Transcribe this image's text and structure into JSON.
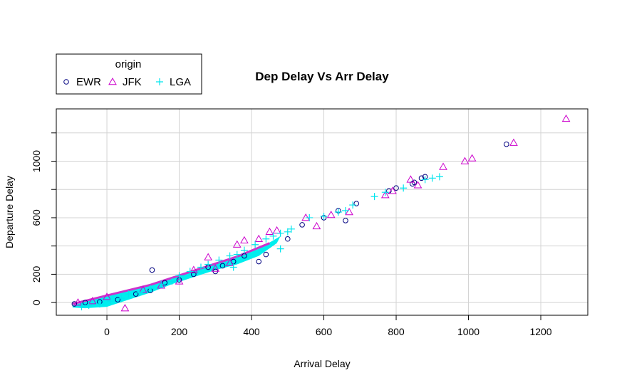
{
  "chart_data": {
    "type": "scatter",
    "title": "Dep Delay Vs Arr Delay",
    "xlabel": "Arrival Delay",
    "ylabel": "Departure Delay",
    "xlim": [
      -140,
      1330
    ],
    "ylim": [
      -90,
      1370
    ],
    "x_ticks": [
      0,
      200,
      400,
      600,
      800,
      1000,
      1200
    ],
    "y_ticks": [
      0,
      200,
      600,
      1000
    ],
    "x_tick_labels": [
      "0",
      "200",
      "400",
      "600",
      "800",
      "1000",
      "1200"
    ],
    "y_tick_labels": [
      "0",
      "200",
      "600",
      "1000"
    ],
    "grid": true,
    "legend": {
      "title": "origin",
      "position": "top-left, outside plot",
      "entries": [
        {
          "label": "EWR",
          "symbol": "circle",
          "color": "#000080"
        },
        {
          "label": "JFK",
          "symbol": "triangle",
          "color": "#CC00CC"
        },
        {
          "label": "LGA",
          "symbol": "plus",
          "color": "#00E5EE"
        }
      ]
    },
    "series": [
      {
        "name": "EWR",
        "symbol": "circle",
        "color": "#000080",
        "points": [
          [
            -90,
            -10
          ],
          [
            -60,
            0
          ],
          [
            -20,
            5
          ],
          [
            30,
            20
          ],
          [
            80,
            60
          ],
          [
            120,
            85
          ],
          [
            125,
            230
          ],
          [
            160,
            140
          ],
          [
            200,
            160
          ],
          [
            240,
            200
          ],
          [
            280,
            250
          ],
          [
            300,
            220
          ],
          [
            320,
            260
          ],
          [
            350,
            290
          ],
          [
            380,
            330
          ],
          [
            420,
            290
          ],
          [
            440,
            340
          ],
          [
            500,
            450
          ],
          [
            540,
            550
          ],
          [
            600,
            600
          ],
          [
            640,
            650
          ],
          [
            660,
            580
          ],
          [
            690,
            700
          ],
          [
            780,
            790
          ],
          [
            800,
            810
          ],
          [
            845,
            840
          ],
          [
            850,
            850
          ],
          [
            870,
            880
          ],
          [
            880,
            890
          ],
          [
            1105,
            1120
          ]
        ]
      },
      {
        "name": "JFK",
        "symbol": "triangle",
        "color": "#CC00CC",
        "points": [
          [
            -80,
            0
          ],
          [
            -40,
            10
          ],
          [
            0,
            40
          ],
          [
            50,
            -40
          ],
          [
            100,
            90
          ],
          [
            150,
            120
          ],
          [
            200,
            150
          ],
          [
            240,
            230
          ],
          [
            280,
            320
          ],
          [
            300,
            240
          ],
          [
            340,
            280
          ],
          [
            360,
            410
          ],
          [
            380,
            440
          ],
          [
            420,
            450
          ],
          [
            450,
            500
          ],
          [
            470,
            510
          ],
          [
            550,
            600
          ],
          [
            580,
            540
          ],
          [
            620,
            620
          ],
          [
            670,
            640
          ],
          [
            770,
            760
          ],
          [
            790,
            790
          ],
          [
            840,
            870
          ],
          [
            860,
            830
          ],
          [
            930,
            960
          ],
          [
            990,
            1000
          ],
          [
            1010,
            1020
          ],
          [
            1125,
            1130
          ],
          [
            1270,
            1300
          ]
        ]
      },
      {
        "name": "LGA",
        "symbol": "plus",
        "color": "#00E5EE",
        "points": [
          [
            -70,
            -30
          ],
          [
            -50,
            -20
          ],
          [
            -20,
            -10
          ],
          [
            10,
            10
          ],
          [
            40,
            30
          ],
          [
            60,
            60
          ],
          [
            90,
            70
          ],
          [
            120,
            100
          ],
          [
            150,
            130
          ],
          [
            180,
            150
          ],
          [
            200,
            190
          ],
          [
            230,
            220
          ],
          [
            260,
            250
          ],
          [
            280,
            270
          ],
          [
            310,
            300
          ],
          [
            340,
            330
          ],
          [
            360,
            340
          ],
          [
            380,
            370
          ],
          [
            410,
            410
          ],
          [
            440,
            450
          ],
          [
            460,
            470
          ],
          [
            480,
            490
          ],
          [
            500,
            500
          ],
          [
            510,
            520
          ],
          [
            560,
            600
          ],
          [
            600,
            610
          ],
          [
            640,
            640
          ],
          [
            660,
            650
          ],
          [
            680,
            690
          ],
          [
            740,
            750
          ],
          [
            770,
            780
          ],
          [
            820,
            810
          ],
          [
            880,
            870
          ],
          [
            900,
            880
          ],
          [
            920,
            890
          ],
          [
            480,
            380
          ],
          [
            350,
            250
          ]
        ]
      }
    ]
  }
}
